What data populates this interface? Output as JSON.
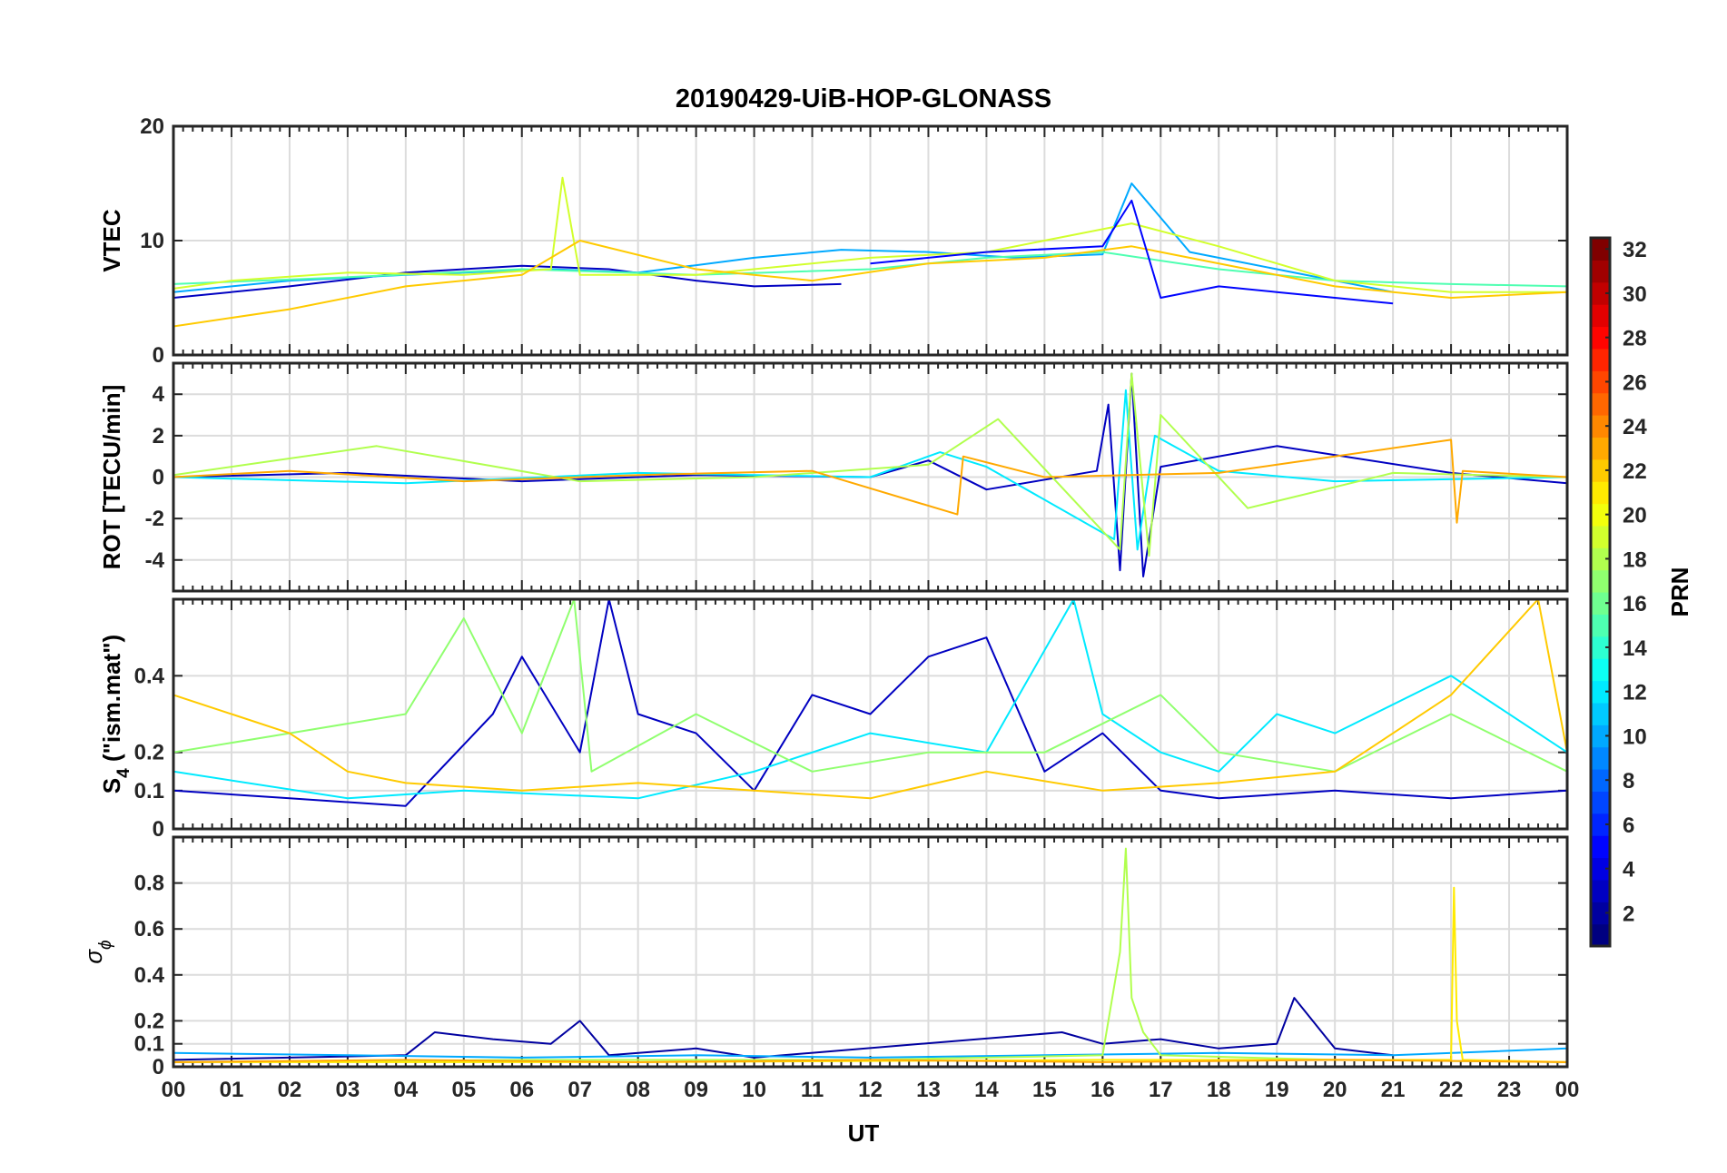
{
  "chart_data": {
    "type": "line",
    "title": "20190429-UiB-HOP-GLONASS",
    "xlabel": "UT",
    "x_ticks": [
      "00",
      "01",
      "02",
      "03",
      "04",
      "05",
      "06",
      "07",
      "08",
      "09",
      "10",
      "11",
      "12",
      "13",
      "14",
      "15",
      "16",
      "17",
      "18",
      "19",
      "20",
      "21",
      "22",
      "23",
      "00"
    ],
    "xlim": [
      0,
      24
    ],
    "colorbar": {
      "label": "PRN",
      "range": [
        1,
        32
      ],
      "ticks": [
        "2",
        "4",
        "6",
        "8",
        "10",
        "12",
        "14",
        "16",
        "18",
        "20",
        "22",
        "24",
        "26",
        "28",
        "30",
        "32"
      ],
      "colormap": "jet"
    },
    "panels": [
      {
        "id": "vtec",
        "ylabel": "VTEC",
        "ylim": [
          0,
          20
        ],
        "yticks": [
          0,
          10,
          20
        ],
        "ytick_labels": [
          "0",
          "10",
          "20"
        ],
        "series": [
          {
            "prn": 3,
            "x": [
              0,
              2,
              4,
              6,
              7.5,
              9,
              10,
              11.5
            ],
            "y": [
              5,
              6,
              7.2,
              7.8,
              7.5,
              6.5,
              6.0,
              6.2
            ]
          },
          {
            "prn": 10,
            "x": [
              0,
              2,
              4,
              6.5,
              8,
              10,
              11.5,
              13,
              14.5,
              16,
              16.5,
              17.5,
              19,
              21
            ],
            "y": [
              5.5,
              6.5,
              7.0,
              7.5,
              7.2,
              8.5,
              9.2,
              9.0,
              8.5,
              8.8,
              15,
              9.0,
              7.5,
              5.5
            ]
          },
          {
            "prn": 15,
            "x": [
              0,
              3,
              6,
              9,
              12,
              14,
              16,
              18,
              20,
              22,
              24
            ],
            "y": [
              6.2,
              6.8,
              7.5,
              7.0,
              7.5,
              8.5,
              9.0,
              7.5,
              6.5,
              6.2,
              6.0
            ]
          },
          {
            "prn": 19,
            "x": [
              0,
              1,
              3,
              5,
              6.5,
              6.7,
              7,
              9,
              12,
              14,
              16.5,
              18,
              20,
              22,
              24
            ],
            "y": [
              5.8,
              6.5,
              7.2,
              7.0,
              7.5,
              15.5,
              7.0,
              7.0,
              8.5,
              9.0,
              11.5,
              9.5,
              6.5,
              5.5,
              5.5
            ]
          },
          {
            "prn": 22,
            "x": [
              0,
              2,
              4,
              6,
              7,
              9,
              11,
              13,
              15,
              16.5,
              17,
              18.5,
              20,
              22,
              24
            ],
            "y": [
              2.5,
              4.0,
              6.0,
              7.0,
              10.0,
              7.5,
              6.5,
              8.0,
              8.5,
              9.5,
              9.0,
              7.5,
              6.0,
              5.0,
              5.5
            ]
          },
          {
            "prn": 5,
            "x": [
              12,
              14,
              16,
              16.5,
              17,
              18,
              19,
              20,
              21
            ],
            "y": [
              8.0,
              9.0,
              9.5,
              13.5,
              5.0,
              6.0,
              5.5,
              5.0,
              4.5
            ]
          }
        ]
      },
      {
        "id": "rot",
        "ylabel": "ROT [TECU/min]",
        "ylim": [
          -5.5,
          5.5
        ],
        "yticks": [
          -4,
          -2,
          0,
          2,
          4
        ],
        "ytick_labels": [
          "-4",
          "-2",
          "0",
          "2",
          "4"
        ],
        "series": [
          {
            "prn": 3,
            "x": [
              0,
              3,
              6,
              9,
              12,
              13,
              14,
              15.9,
              16.1,
              16.3,
              16.5,
              16.7,
              17,
              19,
              22,
              24
            ],
            "y": [
              0,
              0.2,
              -0.2,
              0.1,
              0,
              0.8,
              -0.6,
              0.3,
              3.5,
              -4.5,
              5.0,
              -4.8,
              0.5,
              1.5,
              0.2,
              -0.3
            ]
          },
          {
            "prn": 12,
            "x": [
              0,
              4,
              8,
              12,
              13.2,
              14,
              16.2,
              16.4,
              16.6,
              16.9,
              18,
              20,
              24
            ],
            "y": [
              0,
              -0.3,
              0.2,
              0,
              1.2,
              0.5,
              -3.0,
              4.2,
              -3.5,
              2.0,
              0.3,
              -0.2,
              0
            ]
          },
          {
            "prn": 18,
            "x": [
              0,
              3.5,
              7,
              10,
              13,
              14.2,
              16.3,
              16.5,
              16.8,
              17,
              18.5,
              21,
              24
            ],
            "y": [
              0.1,
              1.5,
              -0.2,
              0,
              0.6,
              2.8,
              -3.5,
              5.0,
              -3.8,
              3.0,
              -1.5,
              0.2,
              0
            ]
          },
          {
            "prn": 23,
            "x": [
              0,
              2,
              5,
              8,
              11,
              13.5,
              13.6,
              15,
              18,
              22,
              22.1,
              22.2,
              24
            ],
            "y": [
              0,
              0.3,
              -0.2,
              0.1,
              0.3,
              -1.8,
              1.0,
              0,
              0.2,
              1.8,
              -2.2,
              0.3,
              0
            ]
          }
        ]
      },
      {
        "id": "s4",
        "ylabel": "S4 (\"ism.mat\")",
        "ylabel_main": "S",
        "ylabel_sub": "4",
        "ylabel_rest": " (\"ism.mat\")",
        "ylim": [
          0,
          0.6
        ],
        "yticks": [
          0,
          0.1,
          0.2,
          0.4
        ],
        "ytick_labels": [
          "0",
          "0.1",
          "0.2",
          "0.4"
        ],
        "series": [
          {
            "prn": 3,
            "x": [
              0,
              2,
              4,
              5.5,
              6,
              7,
              7.5,
              8,
              9,
              10,
              11,
              12,
              13,
              14,
              15,
              16,
              17,
              18,
              20,
              22,
              24
            ],
            "y": [
              0.1,
              0.08,
              0.06,
              0.3,
              0.45,
              0.2,
              0.6,
              0.3,
              0.25,
              0.1,
              0.35,
              0.3,
              0.45,
              0.5,
              0.15,
              0.25,
              0.1,
              0.08,
              0.1,
              0.08,
              0.1
            ]
          },
          {
            "prn": 12,
            "x": [
              0,
              3,
              5,
              8,
              10,
              12,
              14,
              15.5,
              16,
              17,
              18,
              19,
              20,
              22,
              24
            ],
            "y": [
              0.15,
              0.08,
              0.1,
              0.08,
              0.15,
              0.25,
              0.2,
              0.6,
              0.3,
              0.2,
              0.15,
              0.3,
              0.25,
              0.4,
              0.2
            ]
          },
          {
            "prn": 17,
            "x": [
              0,
              2,
              4,
              5,
              6,
              6.9,
              7.2,
              9,
              11,
              13,
              15,
              17,
              18,
              20,
              22,
              24
            ],
            "y": [
              0.2,
              0.25,
              0.3,
              0.55,
              0.25,
              0.6,
              0.15,
              0.3,
              0.15,
              0.2,
              0.2,
              0.35,
              0.2,
              0.15,
              0.3,
              0.15
            ]
          },
          {
            "prn": 22,
            "x": [
              0,
              1,
              2,
              3,
              4,
              6,
              8,
              10,
              12,
              14,
              16,
              18,
              20,
              22,
              23.5,
              24
            ],
            "y": [
              0.35,
              0.3,
              0.25,
              0.15,
              0.12,
              0.1,
              0.12,
              0.1,
              0.08,
              0.15,
              0.1,
              0.12,
              0.15,
              0.35,
              0.6,
              0.2
            ]
          }
        ]
      },
      {
        "id": "sigma",
        "ylabel": "σ ϕ",
        "ylabel_main": "σ",
        "ylabel_sub": "ϕ",
        "ylim": [
          0,
          1
        ],
        "yticks": [
          0,
          0.1,
          0.2,
          0.4,
          0.6,
          0.8
        ],
        "ytick_labels": [
          "0",
          "0.1",
          "0.2",
          "0.4",
          "0.6",
          "0.8"
        ],
        "series": [
          {
            "prn": 2,
            "x": [
              0,
              4,
              4.5,
              5.5,
              6.5,
              7,
              7.5,
              9,
              10,
              15.3,
              16,
              17,
              18,
              19,
              19.3,
              20,
              21
            ],
            "y": [
              0.03,
              0.05,
              0.15,
              0.12,
              0.1,
              0.2,
              0.05,
              0.08,
              0.04,
              0.15,
              0.1,
              0.12,
              0.08,
              0.1,
              0.3,
              0.08,
              0.05
            ]
          },
          {
            "prn": 10,
            "x": [
              0,
              3,
              6,
              9,
              12,
              15,
              18,
              21,
              24
            ],
            "y": [
              0.06,
              0.05,
              0.04,
              0.05,
              0.04,
              0.05,
              0.06,
              0.05,
              0.08
            ]
          },
          {
            "prn": 18,
            "x": [
              0,
              6,
              12,
              16,
              16.3,
              16.4,
              16.5,
              16.7,
              17,
              20,
              24
            ],
            "y": [
              0.02,
              0.03,
              0.03,
              0.05,
              0.5,
              0.95,
              0.3,
              0.15,
              0.05,
              0.03,
              0.02
            ]
          },
          {
            "prn": 21,
            "x": [
              0,
              8,
              16,
              22,
              22.05,
              22.1,
              22.2,
              24
            ],
            "y": [
              0.02,
              0.02,
              0.03,
              0.03,
              0.78,
              0.2,
              0.03,
              0.02
            ]
          },
          {
            "prn": 23,
            "x": [
              0,
              4,
              8,
              12,
              16,
              20,
              24
            ],
            "y": [
              0.02,
              0.03,
              0.02,
              0.03,
              0.02,
              0.03,
              0.02
            ]
          }
        ]
      }
    ]
  }
}
